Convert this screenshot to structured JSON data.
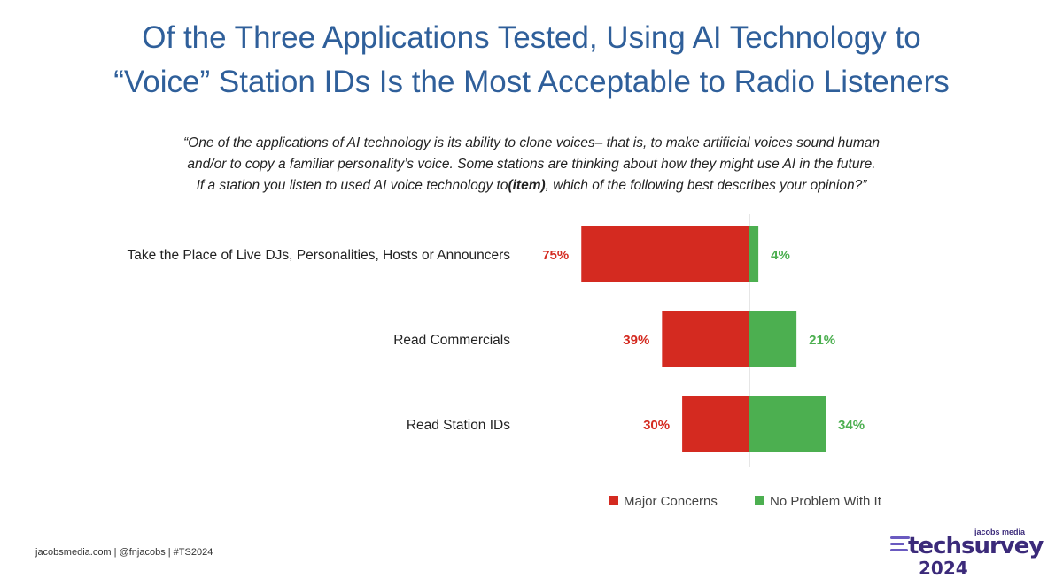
{
  "title": {
    "line1": "Of the Three Applications Tested, Using AI Technology to",
    "line2": "“Voice” Station IDs Is the Most Acceptable to Radio Listeners"
  },
  "question": {
    "line1": "“One of the applications of AI technology is its ability to clone voices– that is, to make artificial voices sound human",
    "line2": "and/or to copy a familiar personality’s voice. Some stations are thinking about how they might use AI in the future.",
    "line3_start": "If a station you listen to used AI voice technology to",
    "line3_item": "(item)",
    "line3_end": ", which of the following best describes your opinion?”"
  },
  "chart_data": {
    "type": "bar",
    "orientation": "horizontal-diverging",
    "categories": [
      "Take the Place of Live DJs, Personalities, Hosts or Announcers",
      "Read Commercials",
      "Read Station IDs"
    ],
    "series": [
      {
        "name": "Major Concerns",
        "values": [
          75,
          39,
          30
        ],
        "color": "#d42a20",
        "labels": [
          "75%",
          "39%",
          "30%"
        ]
      },
      {
        "name": "No Problem With It",
        "values": [
          4,
          21,
          34
        ],
        "color": "#4caf50",
        "labels": [
          "4%",
          "21%",
          "34%"
        ]
      }
    ],
    "legend_position": "bottom-right",
    "grid": false
  },
  "footer": {
    "text": "jacobsmedia.com | @fnjacobs | #TS2024"
  },
  "logo": {
    "brand": "jacobs media",
    "word": "techsurvey",
    "year": "2024",
    "color": "#3b2a7a"
  }
}
